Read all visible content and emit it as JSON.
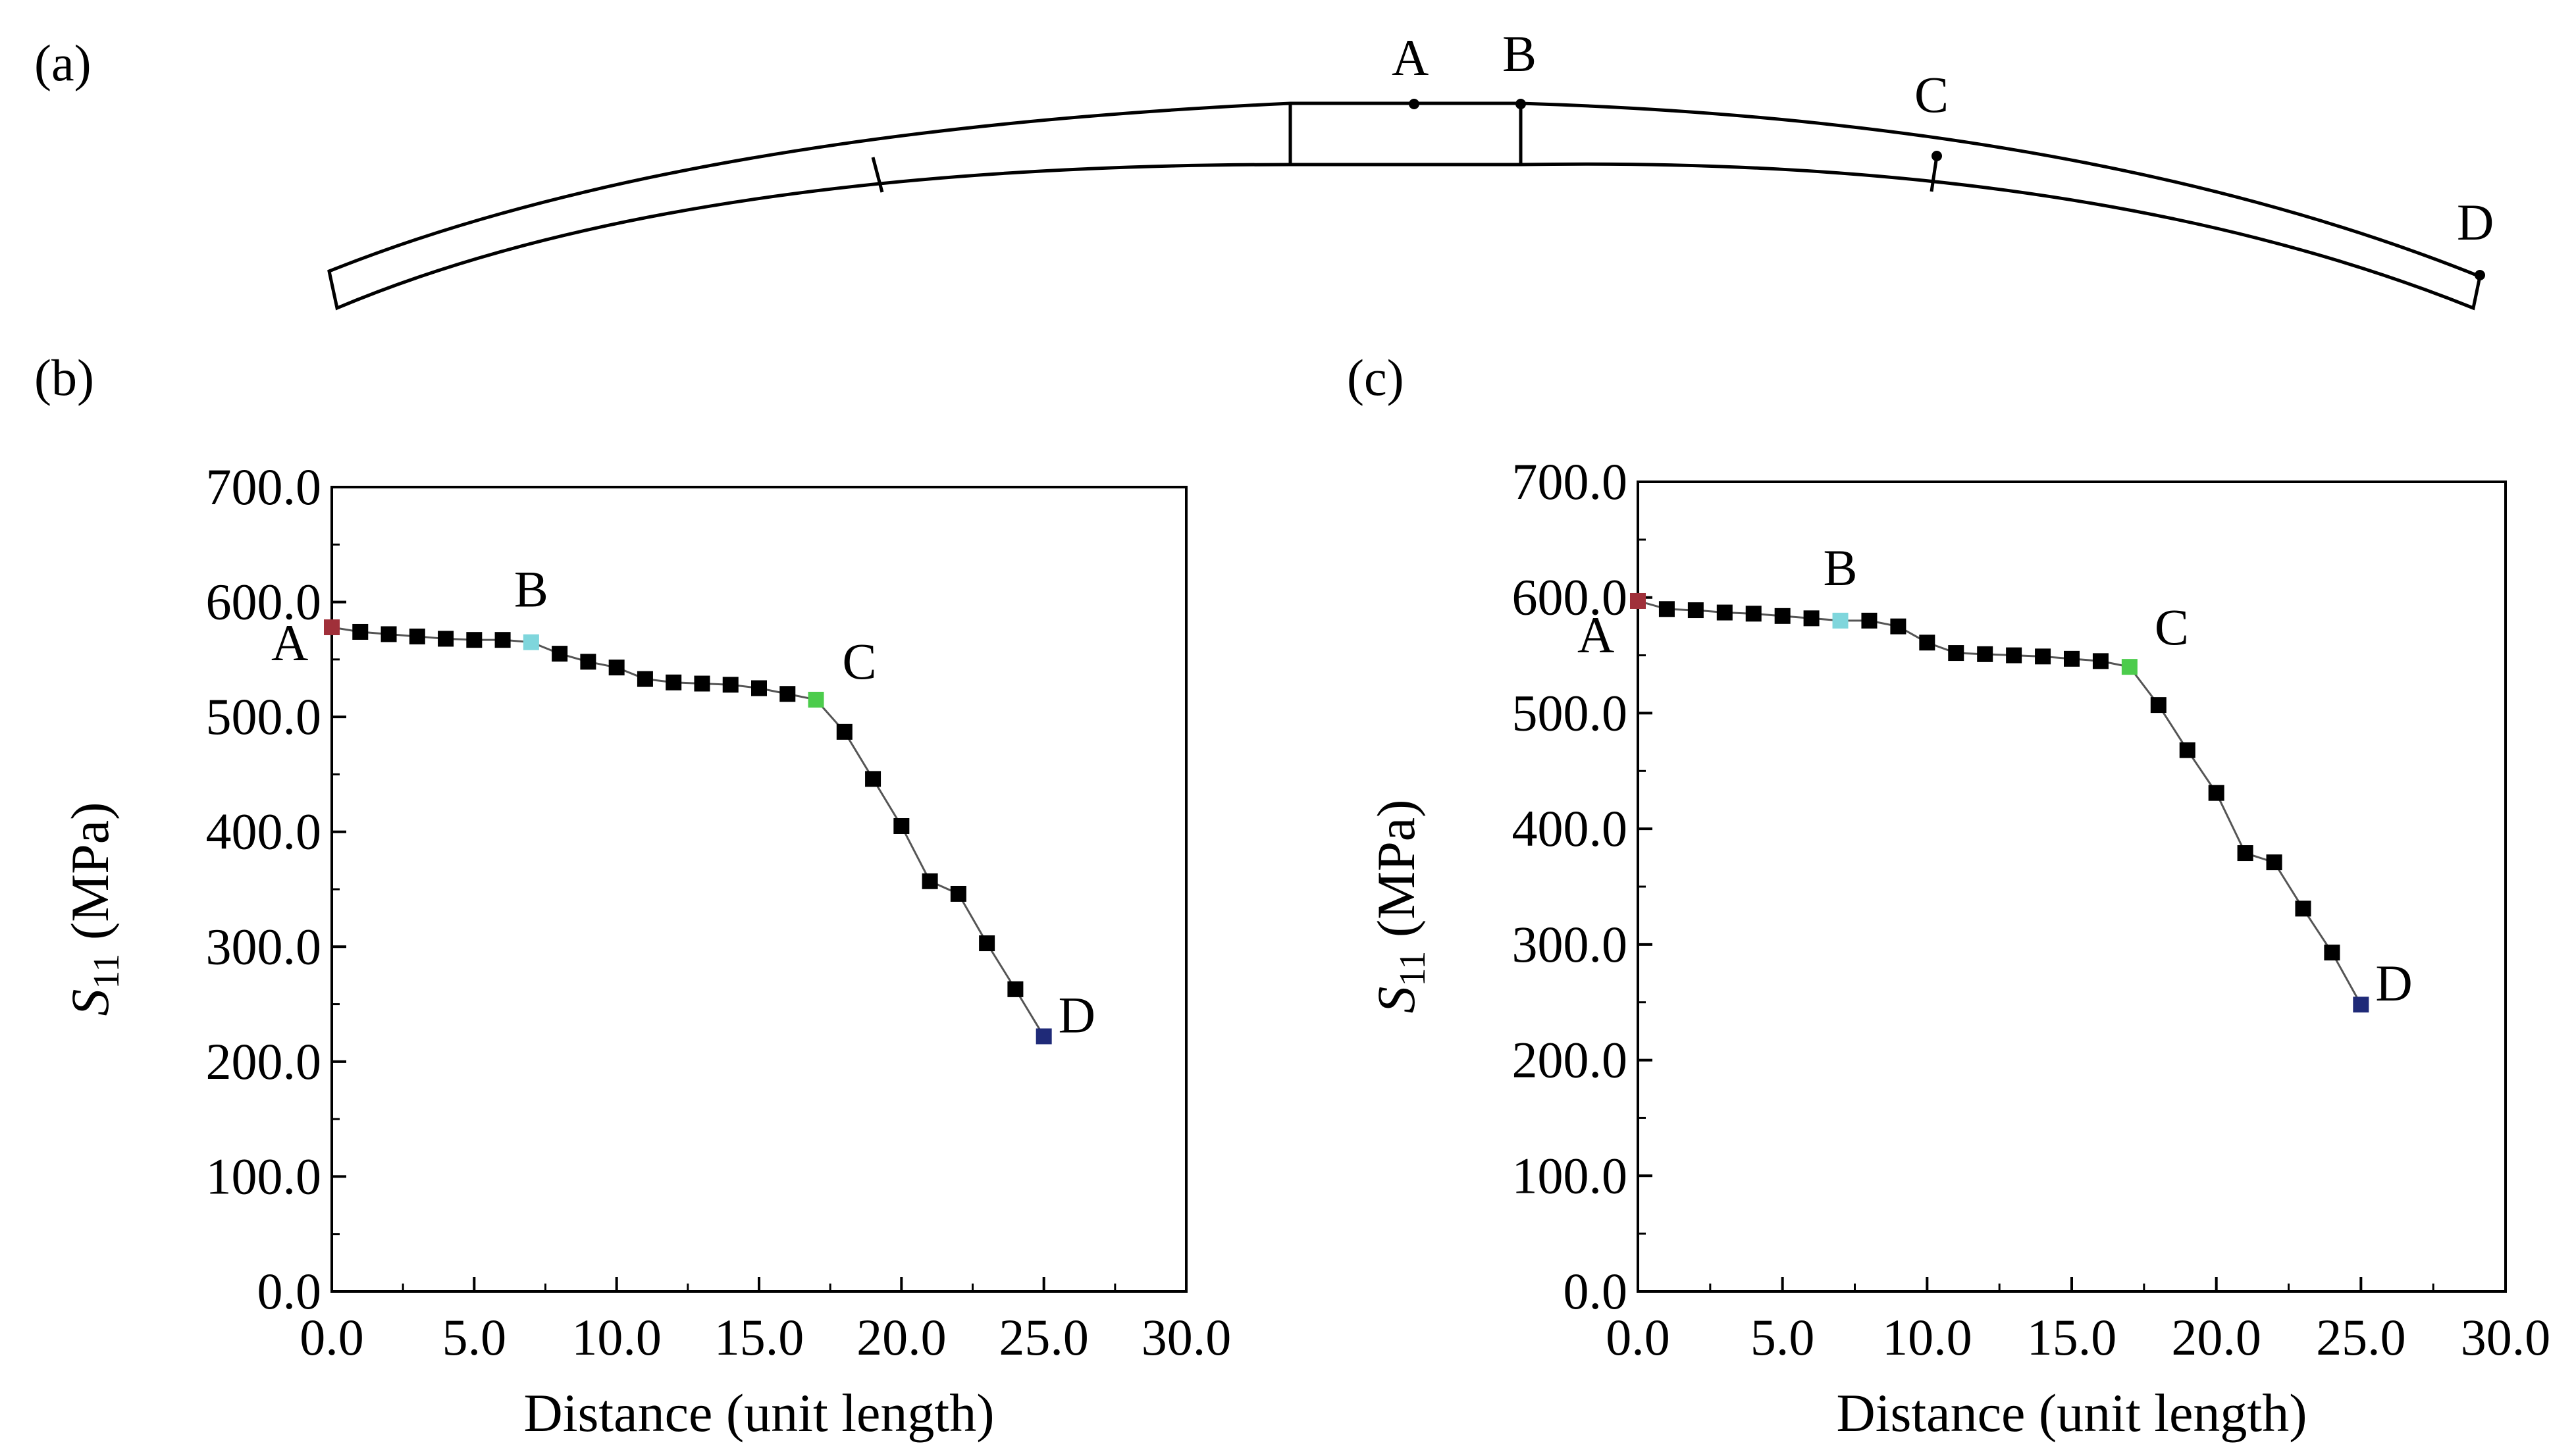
{
  "figure": {
    "panel_labels": [
      "(a)",
      "(b)",
      "(c)"
    ],
    "diagram": {
      "points": [
        "A",
        "B",
        "C",
        "D"
      ],
      "line_color": "#000000"
    }
  },
  "chart_data": [
    {
      "type": "line",
      "panel": "(b)",
      "title": "",
      "xlabel": "Distance (unit length)",
      "ylabel_var": "S",
      "ylabel_sub": "11",
      "ylabel_unit": "(MPa)",
      "xlim": [
        0,
        30
      ],
      "ylim": [
        0,
        700
      ],
      "xticks": [
        0,
        5,
        10,
        15,
        20,
        25,
        30
      ],
      "xtick_labels": [
        "0.0",
        "5.0",
        "10.0",
        "15.0",
        "20.0",
        "25.0",
        "30.0"
      ],
      "yticks": [
        0,
        100,
        200,
        300,
        400,
        500,
        600,
        700
      ],
      "ytick_labels": [
        "0.0",
        "100.0",
        "200.0",
        "300.0",
        "400.0",
        "500.0",
        "600.0",
        "700.0"
      ],
      "grid": false,
      "series": [
        {
          "name": "S11",
          "x": [
            0,
            1,
            2,
            3,
            4,
            5,
            6,
            7,
            8,
            9,
            10,
            11,
            12,
            13,
            14,
            15,
            16,
            17,
            18,
            19,
            20,
            21,
            22,
            23,
            24,
            25
          ],
          "y": [
            578,
            574,
            572,
            570,
            568,
            567,
            567,
            565,
            555,
            548,
            543,
            533,
            530,
            529,
            528,
            525,
            520,
            515,
            487,
            446,
            405,
            357,
            346,
            303,
            263,
            222
          ]
        }
      ],
      "annotations": [
        {
          "text": "A",
          "x": 0,
          "y": 578,
          "color": "#a0303a"
        },
        {
          "text": "B",
          "x": 7,
          "y": 565,
          "color": "#7fd6dc"
        },
        {
          "text": "C",
          "x": 17,
          "y": 515,
          "color": "#4ccc4c"
        },
        {
          "text": "D",
          "x": 25,
          "y": 222,
          "color": "#1f2a78"
        }
      ]
    },
    {
      "type": "line",
      "panel": "(c)",
      "title": "",
      "xlabel": "Distance (unit length)",
      "ylabel_var": "S",
      "ylabel_sub": "11",
      "ylabel_unit": "(MPa)",
      "xlim": [
        0,
        30
      ],
      "ylim": [
        0,
        700
      ],
      "xticks": [
        0,
        5,
        10,
        15,
        20,
        25,
        30
      ],
      "xtick_labels": [
        "0.0",
        "5.0",
        "10.0",
        "15.0",
        "20.0",
        "25.0",
        "30.0"
      ],
      "yticks": [
        0,
        100,
        200,
        300,
        400,
        500,
        600,
        700
      ],
      "ytick_labels": [
        "0.0",
        "100.0",
        "200.0",
        "300.0",
        "400.0",
        "500.0",
        "600.0",
        "700.0"
      ],
      "grid": false,
      "series": [
        {
          "name": "S11",
          "x": [
            0,
            1,
            2,
            3,
            4,
            5,
            6,
            7,
            8,
            9,
            10,
            11,
            12,
            13,
            14,
            15,
            16,
            17,
            18,
            19,
            20,
            21,
            22,
            23,
            24,
            25
          ],
          "y": [
            597,
            590,
            589,
            587,
            586,
            584,
            582,
            580,
            580,
            575,
            561,
            552,
            551,
            550,
            549,
            547,
            545,
            540,
            507,
            468,
            431,
            379,
            371,
            331,
            293,
            248
          ]
        }
      ],
      "annotations": [
        {
          "text": "A",
          "x": 0,
          "y": 597,
          "color": "#a0303a"
        },
        {
          "text": "B",
          "x": 7,
          "y": 580,
          "color": "#7fd6dc"
        },
        {
          "text": "C",
          "x": 17,
          "y": 540,
          "color": "#4ccc4c"
        },
        {
          "text": "D",
          "x": 25,
          "y": 248,
          "color": "#1f2a78"
        }
      ]
    }
  ]
}
